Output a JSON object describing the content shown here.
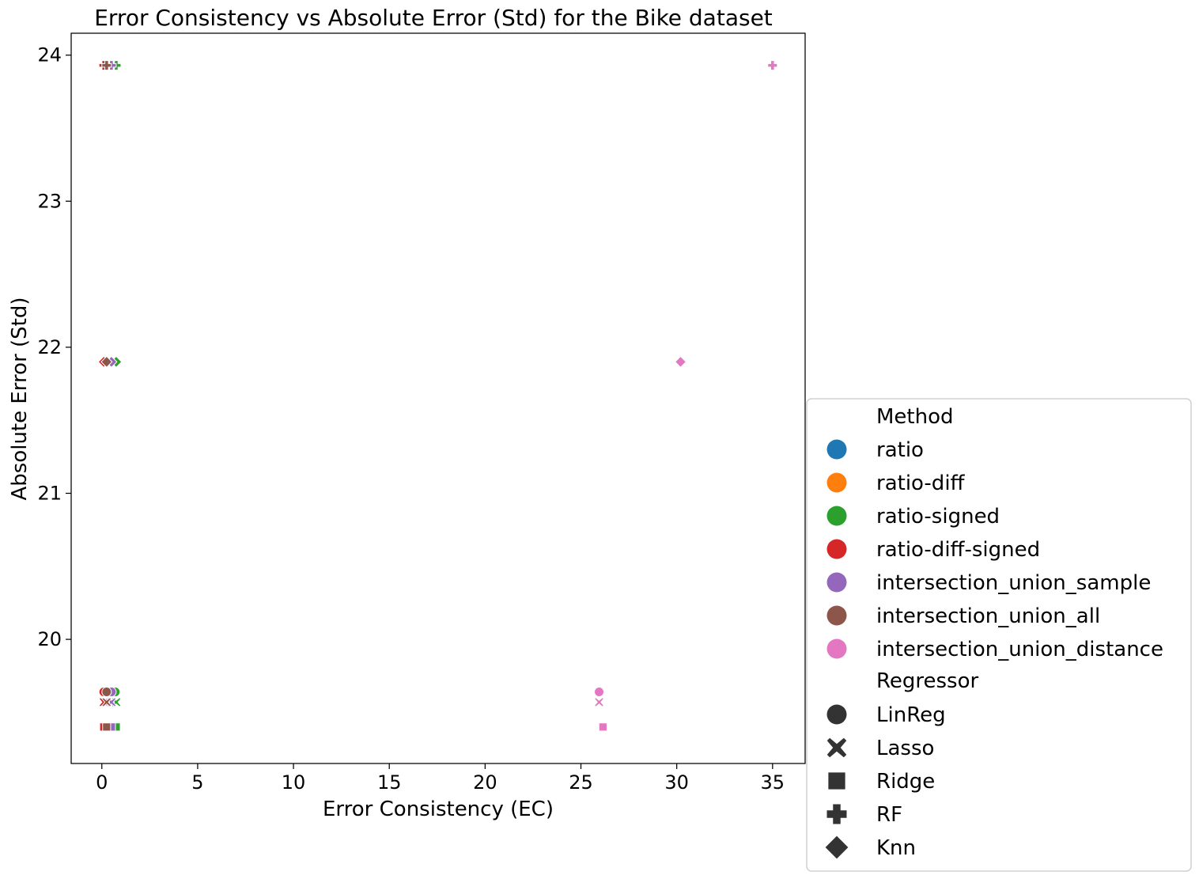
{
  "chart_data": {
    "type": "scatter",
    "title": "Error Consistency vs Absolute Error (Std) for the Bike dataset",
    "xlabel": "Error Consistency (EC)",
    "ylabel": "Absolute Error (Std)",
    "xlim": [
      -1.6,
      36.7
    ],
    "ylim": [
      19.15,
      24.15
    ],
    "xticks": [
      0,
      5,
      10,
      15,
      20,
      25,
      30,
      35
    ],
    "yticks": [
      20,
      21,
      22,
      23,
      24
    ],
    "grid": false,
    "legend_position": "outside-bottom-right",
    "legend": {
      "hue_title": "Method",
      "style_title": "Regressor",
      "methods": [
        {
          "name": "ratio",
          "color": "#1f77b4"
        },
        {
          "name": "ratio-diff",
          "color": "#ff7f0e"
        },
        {
          "name": "ratio-signed",
          "color": "#2ca02c"
        },
        {
          "name": "ratio-diff-signed",
          "color": "#d62728"
        },
        {
          "name": "intersection_union_sample",
          "color": "#9467bd"
        },
        {
          "name": "intersection_union_all",
          "color": "#8c564b"
        },
        {
          "name": "intersection_union_distance",
          "color": "#e377c2"
        }
      ],
      "regressors": [
        {
          "name": "LinReg",
          "marker": "circle"
        },
        {
          "name": "Lasso",
          "marker": "x"
        },
        {
          "name": "Ridge",
          "marker": "square"
        },
        {
          "name": "RF",
          "marker": "plus"
        },
        {
          "name": "Knn",
          "marker": "diamond"
        }
      ]
    },
    "series": [
      {
        "name": "ratio",
        "points": [
          {
            "regressor": "LinReg",
            "x": 0.15,
            "y": 19.64
          },
          {
            "regressor": "Lasso",
            "x": 0.15,
            "y": 19.57
          },
          {
            "regressor": "Ridge",
            "x": 0.15,
            "y": 19.4
          },
          {
            "regressor": "RF",
            "x": 0.15,
            "y": 23.93
          },
          {
            "regressor": "Knn",
            "x": 0.15,
            "y": 21.9
          }
        ]
      },
      {
        "name": "ratio-diff",
        "points": [
          {
            "regressor": "LinReg",
            "x": 0.2,
            "y": 19.64
          },
          {
            "regressor": "Lasso",
            "x": 0.2,
            "y": 19.57
          },
          {
            "regressor": "Ridge",
            "x": 0.2,
            "y": 19.4
          },
          {
            "regressor": "RF",
            "x": 0.2,
            "y": 23.93
          },
          {
            "regressor": "Knn",
            "x": 0.2,
            "y": 21.9
          }
        ]
      },
      {
        "name": "ratio-signed",
        "points": [
          {
            "regressor": "LinReg",
            "x": 0.7,
            "y": 19.64
          },
          {
            "regressor": "Lasso",
            "x": 0.75,
            "y": 19.57
          },
          {
            "regressor": "Ridge",
            "x": 0.75,
            "y": 19.4
          },
          {
            "regressor": "RF",
            "x": 0.75,
            "y": 23.93
          },
          {
            "regressor": "Knn",
            "x": 0.75,
            "y": 21.9
          }
        ]
      },
      {
        "name": "ratio-diff-signed",
        "points": [
          {
            "regressor": "LinReg",
            "x": 0.1,
            "y": 19.64
          },
          {
            "regressor": "Lasso",
            "x": 0.1,
            "y": 19.57
          },
          {
            "regressor": "Ridge",
            "x": 0.1,
            "y": 19.4
          },
          {
            "regressor": "RF",
            "x": 0.1,
            "y": 23.93
          },
          {
            "regressor": "Knn",
            "x": 0.1,
            "y": 21.9
          }
        ]
      },
      {
        "name": "intersection_union_sample",
        "points": [
          {
            "regressor": "LinReg",
            "x": 0.5,
            "y": 19.64
          },
          {
            "regressor": "Lasso",
            "x": 0.5,
            "y": 19.57
          },
          {
            "regressor": "Ridge",
            "x": 0.5,
            "y": 19.4
          },
          {
            "regressor": "RF",
            "x": 0.5,
            "y": 23.93
          },
          {
            "regressor": "Knn",
            "x": 0.5,
            "y": 21.9
          }
        ]
      },
      {
        "name": "intersection_union_all",
        "points": [
          {
            "regressor": "LinReg",
            "x": 0.25,
            "y": 19.64
          },
          {
            "regressor": "Lasso",
            "x": 0.25,
            "y": 19.57
          },
          {
            "regressor": "Ridge",
            "x": 0.25,
            "y": 19.4
          },
          {
            "regressor": "RF",
            "x": 0.25,
            "y": 23.93
          },
          {
            "regressor": "Knn",
            "x": 0.25,
            "y": 21.9
          }
        ]
      },
      {
        "name": "intersection_union_distance",
        "points": [
          {
            "regressor": "LinReg",
            "x": 25.95,
            "y": 19.64
          },
          {
            "regressor": "Lasso",
            "x": 25.95,
            "y": 19.57
          },
          {
            "regressor": "Ridge",
            "x": 26.15,
            "y": 19.4
          },
          {
            "regressor": "RF",
            "x": 35.0,
            "y": 23.93
          },
          {
            "regressor": "Knn",
            "x": 30.2,
            "y": 21.9
          }
        ]
      }
    ]
  }
}
